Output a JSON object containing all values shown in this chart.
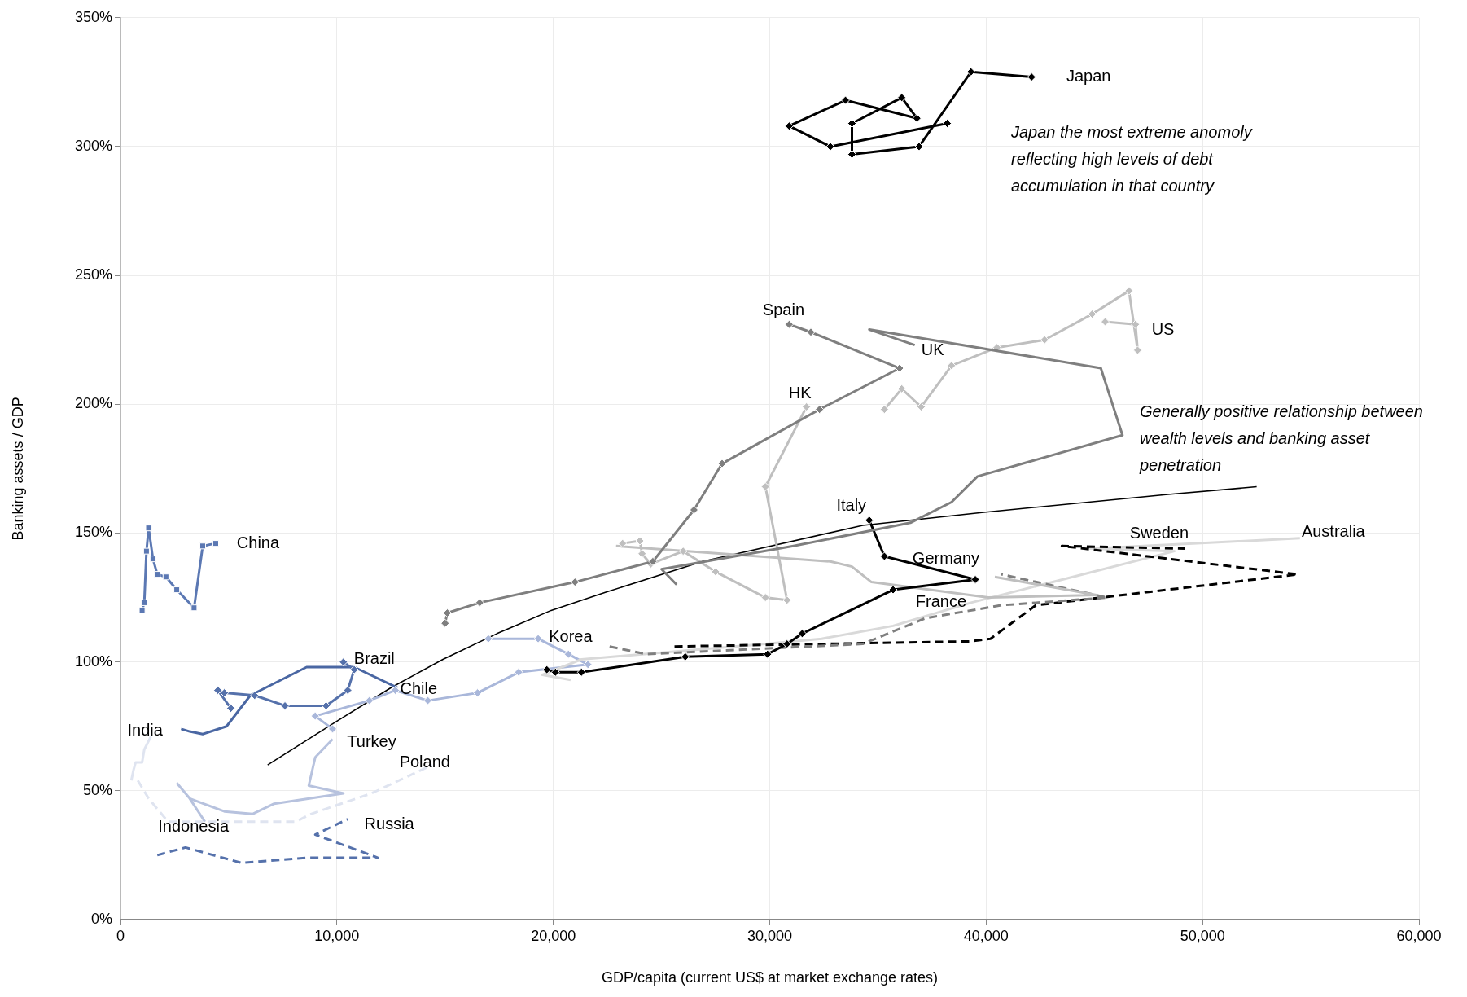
{
  "chart_data": {
    "type": "line",
    "xlabel": "GDP/capita (current US$ at market exchange rates)",
    "ylabel": "Banking assets / GDP",
    "xlim": [
      0,
      60000
    ],
    "xticks": [
      0,
      {
        "value": 10000,
        "label": "10,000"
      },
      {
        "value": 20000,
        "label": "20,000"
      },
      {
        "value": 30000,
        "label": "30,000"
      },
      {
        "value": 40000,
        "label": "40,000"
      },
      {
        "value": 50000,
        "label": "50,000"
      },
      {
        "value": 60000,
        "label": "60,000"
      }
    ],
    "ylim": [
      0,
      350
    ],
    "yticks": [
      {
        "value": 0,
        "label": "0%"
      },
      {
        "value": 50,
        "label": "50%"
      },
      {
        "value": 100,
        "label": "100%"
      },
      {
        "value": 150,
        "label": "150%"
      },
      {
        "value": 200,
        "label": "200%"
      },
      {
        "value": 250,
        "label": "250%"
      },
      {
        "value": 300,
        "label": "300%"
      },
      {
        "value": 350,
        "label": "350%"
      }
    ],
    "grid": true,
    "legend": false,
    "annotations": [
      "Japan the most extreme anomoly reflecting high levels of debt accumulation in that country",
      "Generally positive relationship between wealth levels and banking asset penetration"
    ],
    "series": [
      {
        "name": "Japan",
        "color": "#000000",
        "marker": "diamond",
        "line_style": "solid",
        "x": [
          38200,
          32800,
          30900,
          33500,
          36800,
          36100,
          33800,
          33800,
          36900,
          39300,
          42100
        ],
        "values": [
          309,
          300,
          308,
          318,
          311,
          319,
          309,
          297,
          300,
          329,
          327
        ]
      },
      {
        "name": "China",
        "color": "#5b78b3",
        "marker": "square",
        "line_style": "solid",
        "x": [
          1000,
          1100,
          1200,
          1300,
          1500,
          1700,
          2100,
          2600,
          3400,
          3800,
          4400
        ],
        "values": [
          120,
          123,
          143,
          152,
          140,
          134,
          133,
          128,
          121,
          145,
          146
        ]
      },
      {
        "name": "Spain",
        "color": "#7f7f7f",
        "marker": "diamond",
        "line_style": "solid",
        "x": [
          15000,
          15100,
          16600,
          21000,
          24600,
          26500,
          27800,
          32300,
          36000,
          31900,
          30900
        ],
        "values": [
          115,
          119,
          123,
          131,
          139,
          159,
          177,
          198,
          214,
          228,
          231
        ]
      },
      {
        "name": "UK",
        "color": "#7f7f7f",
        "marker": "none",
        "line_style": "solid",
        "x": [
          25700,
          25000,
          31100,
          36500,
          38400,
          39600,
          46300,
          45300,
          34600,
          36700
        ],
        "values": [
          130,
          136,
          145,
          154,
          162,
          172,
          188,
          214,
          229,
          223
        ]
      },
      {
        "name": "US",
        "color": "#bfbfbf",
        "marker": "diamond",
        "line_style": "solid",
        "x": [
          35300,
          36100,
          37000,
          38400,
          40500,
          42700,
          44900,
          46600,
          47000,
          46900,
          45500
        ],
        "values": [
          198,
          206,
          199,
          215,
          222,
          225,
          235,
          244,
          221,
          231,
          232
        ]
      },
      {
        "name": "HK",
        "color": "#bfbfbf",
        "marker": "diamond",
        "line_style": "solid",
        "x": [
          23200,
          24000,
          24100,
          24500,
          26000,
          27500,
          29800,
          30800,
          29800,
          31700
        ],
        "values": [
          146,
          147,
          142,
          138,
          143,
          135,
          125,
          124,
          168,
          199
        ]
      },
      {
        "name": "Italy",
        "color": "#000000",
        "marker": "diamond",
        "line_style": "solid",
        "x": [
          19700,
          20100,
          21300,
          26100,
          29900,
          30800,
          31500,
          35700,
          39500,
          35300,
          34600
        ],
        "values": [
          97,
          96,
          96,
          102,
          103,
          107,
          111,
          128,
          132,
          141,
          155
        ]
      },
      {
        "name": "Germany",
        "color": "#bfbfbf",
        "marker": "none",
        "line_style": "solid",
        "x": [
          22900,
          32800,
          33800,
          34700,
          40100,
          45100,
          40400
        ],
        "values": [
          145,
          139,
          137,
          131,
          125,
          126,
          133
        ]
      },
      {
        "name": "France",
        "color": "#7f7f7f",
        "marker": "none",
        "line_style": "dashed",
        "x": [
          22600,
          24300,
          34300,
          37200,
          40700,
          45600,
          40700
        ],
        "values": [
          106,
          103,
          107,
          117,
          122,
          125,
          134
        ]
      },
      {
        "name": "Sweden",
        "color": "#000000",
        "marker": "none",
        "line_style": "dashed",
        "x": [
          25600,
          39300,
          40200,
          42300,
          54400,
          43500,
          49200
        ],
        "values": [
          106,
          108,
          109,
          122,
          134,
          145,
          144
        ]
      },
      {
        "name": "Australia",
        "color": "#d9d9d9",
        "marker": "none",
        "line_style": "solid",
        "x": [
          20800,
          19500,
          21300,
          29800,
          32400,
          35700,
          39300,
          48700,
          44800,
          54500
        ],
        "values": [
          93,
          95,
          101,
          107,
          109,
          114,
          123,
          143,
          144,
          148
        ]
      },
      {
        "name": "Korea",
        "color": "#a9b7da",
        "marker": "diamond",
        "line_style": "solid",
        "x": [
          9800,
          9000,
          11500,
          12700,
          14200,
          16500,
          18400,
          21600,
          20700,
          19300,
          17000
        ],
        "values": [
          74,
          79,
          85,
          89,
          85,
          88,
          96,
          99,
          103,
          109,
          109
        ]
      },
      {
        "name": "Brazil",
        "color": "#5571ab",
        "marker": "diamond",
        "line_style": "solid",
        "x": [
          5100,
          4500,
          4800,
          6200,
          7600,
          9500,
          10500,
          10800,
          10300
        ],
        "values": [
          82,
          89,
          88,
          87,
          83,
          83,
          89,
          97,
          100
        ]
      },
      {
        "name": "Chile",
        "color": "#4a67a3",
        "marker": "none",
        "line_style": "solid",
        "x": [
          2800,
          3200,
          3800,
          4900,
          6000,
          8600,
          10800,
          12800
        ],
        "values": [
          74,
          73,
          72,
          75,
          87,
          98,
          98,
          90
        ]
      },
      {
        "name": "India",
        "color": "#dfe4f0",
        "marker": "none",
        "line_style": "solid",
        "x": [
          500,
          600,
          700,
          1000,
          1100,
          1400
        ],
        "values": [
          54,
          58,
          61,
          61,
          66,
          71
        ]
      },
      {
        "name": "Turkey",
        "color": "#b7c2de",
        "marker": "none",
        "line_style": "solid",
        "x": [
          3200,
          4800,
          6100,
          7100,
          10300,
          8700,
          9000,
          9800
        ],
        "values": [
          47,
          42,
          41,
          45,
          49,
          52,
          63,
          70
        ]
      },
      {
        "name": "Indonesia",
        "color": "#b7c2de",
        "marker": "none",
        "line_style": "solid",
        "x": [
          2600,
          3200,
          3900
        ],
        "values": [
          53,
          47,
          38
        ]
      },
      {
        "name": "Poland",
        "color": "#dfe4f0",
        "marker": "none",
        "line_style": "dashed",
        "x": [
          800,
          1300,
          2200,
          5600,
          8100,
          8800,
          11600,
          14400
        ],
        "values": [
          54,
          47,
          38,
          38,
          38,
          41,
          49,
          60
        ]
      },
      {
        "name": "Russia",
        "color": "#5571ab",
        "marker": "none",
        "line_style": "dashed",
        "x": [
          1700,
          3000,
          5600,
          8600,
          11900,
          9000,
          10500
        ],
        "values": [
          25,
          28,
          22,
          24,
          24,
          33,
          39
        ]
      },
      {
        "type": "line",
        "color": "#000000",
        "marker": "none",
        "line_style": "solid",
        "x": [
          6800,
          10000,
          12500,
          14900,
          17400,
          19900,
          22400,
          26900,
          34300,
          39800,
          48400,
          52500
        ],
        "values": [
          60,
          77,
          90,
          101,
          111,
          120,
          127,
          139,
          153,
          158,
          165,
          168
        ]
      }
    ]
  }
}
